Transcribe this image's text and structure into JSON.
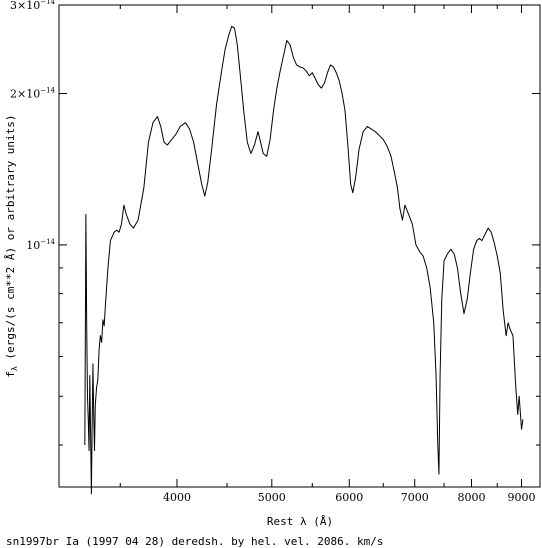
{
  "chart_data": {
    "type": "line",
    "x_scale": "log",
    "y_scale": "log",
    "xlabel": "Rest λ (Å)",
    "ylabel": "f_λ (ergs/(s cm**2 Å) or arbitrary units)",
    "ylabel_parts": {
      "f": "f",
      "sub": "λ",
      "rest": " (ergs/(s cm**2 Å) or arbitrary units)"
    },
    "caption": "sn1997br Ia (1997 04 28) deredsh. by hel. vel.  2086. km/s",
    "xlim": [
      3030,
      9400
    ],
    "ylim": [
      3.3e-15,
      3e-14
    ],
    "x_major_ticks": [
      {
        "value": 4000,
        "label": "4000"
      },
      {
        "value": 5000,
        "label": "5000"
      },
      {
        "value": 6000,
        "label": "6000"
      },
      {
        "value": 7000,
        "label": "7000"
      },
      {
        "value": 8000,
        "label": "8000"
      },
      {
        "value": 9000,
        "label": "9000"
      }
    ],
    "x_minor_ticks": [
      3500,
      4500,
      5500,
      6500,
      7500,
      8500
    ],
    "y_major_ticks": [
      {
        "value": 1e-14,
        "mant": "10",
        "exp": "−14"
      },
      {
        "value": 2e-14,
        "mant": "2×10",
        "exp": "−14"
      },
      {
        "value": 3e-14,
        "mant": "3×10",
        "exp": "−14"
      }
    ],
    "y_minor_ticks": [
      4e-15,
      5e-15,
      6e-15,
      7e-15,
      8e-15,
      9e-15
    ],
    "grid": false,
    "series": [
      {
        "color": "#000000",
        "points": [
          [
            3220,
            4e-15
          ],
          [
            3228,
            1.15e-14
          ],
          [
            3234,
            7e-15
          ],
          [
            3240,
            5e-15
          ],
          [
            3246,
            4.5e-15
          ],
          [
            3252,
            3.9e-15
          ],
          [
            3258,
            5.5e-15
          ],
          [
            3264,
            4.2e-15
          ],
          [
            3270,
            3.2e-15
          ],
          [
            3276,
            4.4e-15
          ],
          [
            3282,
            5.8e-15
          ],
          [
            3288,
            4.6e-15
          ],
          [
            3294,
            3.9e-15
          ],
          [
            3300,
            4.8e-15
          ],
          [
            3310,
            5.2e-15
          ],
          [
            3320,
            5.4e-15
          ],
          [
            3330,
            6.2e-15
          ],
          [
            3340,
            6.6e-15
          ],
          [
            3350,
            6.4e-15
          ],
          [
            3360,
            7.1e-15
          ],
          [
            3370,
            6.9e-15
          ],
          [
            3380,
            7.6e-15
          ],
          [
            3400,
            9e-15
          ],
          [
            3420,
            1.02e-14
          ],
          [
            3450,
            1.06e-14
          ],
          [
            3470,
            1.07e-14
          ],
          [
            3490,
            1.06e-14
          ],
          [
            3510,
            1.1e-14
          ],
          [
            3530,
            1.2e-14
          ],
          [
            3550,
            1.15e-14
          ],
          [
            3580,
            1.1e-14
          ],
          [
            3610,
            1.08e-14
          ],
          [
            3650,
            1.12e-14
          ],
          [
            3700,
            1.3e-14
          ],
          [
            3740,
            1.6e-14
          ],
          [
            3780,
            1.75e-14
          ],
          [
            3820,
            1.8e-14
          ],
          [
            3850,
            1.72e-14
          ],
          [
            3880,
            1.6e-14
          ],
          [
            3910,
            1.58e-14
          ],
          [
            3950,
            1.62e-14
          ],
          [
            3990,
            1.66e-14
          ],
          [
            4030,
            1.72e-14
          ],
          [
            4080,
            1.75e-14
          ],
          [
            4120,
            1.7e-14
          ],
          [
            4160,
            1.6e-14
          ],
          [
            4200,
            1.45e-14
          ],
          [
            4240,
            1.32e-14
          ],
          [
            4270,
            1.25e-14
          ],
          [
            4300,
            1.33e-14
          ],
          [
            4340,
            1.55e-14
          ],
          [
            4390,
            1.9e-14
          ],
          [
            4440,
            2.2e-14
          ],
          [
            4480,
            2.45e-14
          ],
          [
            4520,
            2.62e-14
          ],
          [
            4550,
            2.72e-14
          ],
          [
            4580,
            2.7e-14
          ],
          [
            4610,
            2.5e-14
          ],
          [
            4640,
            2.2e-14
          ],
          [
            4680,
            1.85e-14
          ],
          [
            4720,
            1.6e-14
          ],
          [
            4760,
            1.52e-14
          ],
          [
            4800,
            1.58e-14
          ],
          [
            4840,
            1.68e-14
          ],
          [
            4870,
            1.6e-14
          ],
          [
            4900,
            1.52e-14
          ],
          [
            4940,
            1.5e-14
          ],
          [
            4980,
            1.62e-14
          ],
          [
            5020,
            1.85e-14
          ],
          [
            5060,
            2.05e-14
          ],
          [
            5100,
            2.22e-14
          ],
          [
            5140,
            2.38e-14
          ],
          [
            5180,
            2.55e-14
          ],
          [
            5220,
            2.5e-14
          ],
          [
            5260,
            2.36e-14
          ],
          [
            5300,
            2.28e-14
          ],
          [
            5340,
            2.26e-14
          ],
          [
            5380,
            2.25e-14
          ],
          [
            5420,
            2.22e-14
          ],
          [
            5460,
            2.17e-14
          ],
          [
            5500,
            2.2e-14
          ],
          [
            5540,
            2.14e-14
          ],
          [
            5580,
            2.08e-14
          ],
          [
            5620,
            2.05e-14
          ],
          [
            5660,
            2.1e-14
          ],
          [
            5700,
            2.2e-14
          ],
          [
            5740,
            2.28e-14
          ],
          [
            5780,
            2.26e-14
          ],
          [
            5820,
            2.2e-14
          ],
          [
            5860,
            2.12e-14
          ],
          [
            5900,
            2e-14
          ],
          [
            5940,
            1.85e-14
          ],
          [
            5980,
            1.58e-14
          ],
          [
            6020,
            1.32e-14
          ],
          [
            6050,
            1.27e-14
          ],
          [
            6090,
            1.36e-14
          ],
          [
            6140,
            1.55e-14
          ],
          [
            6200,
            1.68e-14
          ],
          [
            6260,
            1.72e-14
          ],
          [
            6320,
            1.7e-14
          ],
          [
            6380,
            1.68e-14
          ],
          [
            6440,
            1.65e-14
          ],
          [
            6500,
            1.62e-14
          ],
          [
            6560,
            1.57e-14
          ],
          [
            6620,
            1.5e-14
          ],
          [
            6680,
            1.38e-14
          ],
          [
            6720,
            1.3e-14
          ],
          [
            6760,
            1.18e-14
          ],
          [
            6800,
            1.12e-14
          ],
          [
            6840,
            1.2e-14
          ],
          [
            6900,
            1.15e-14
          ],
          [
            6960,
            1.1e-14
          ],
          [
            7020,
            1e-14
          ],
          [
            7080,
            9.7e-15
          ],
          [
            7140,
            9.5e-15
          ],
          [
            7200,
            9e-15
          ],
          [
            7260,
            8.2e-15
          ],
          [
            7320,
            7e-15
          ],
          [
            7360,
            5.5e-15
          ],
          [
            7390,
            4e-15
          ],
          [
            7410,
            3.5e-15
          ],
          [
            7430,
            5.5e-15
          ],
          [
            7460,
            7.8e-15
          ],
          [
            7500,
            9.3e-15
          ],
          [
            7560,
            9.6e-15
          ],
          [
            7620,
            9.8e-15
          ],
          [
            7680,
            9.6e-15
          ],
          [
            7740,
            9e-15
          ],
          [
            7800,
            8e-15
          ],
          [
            7860,
            7.3e-15
          ],
          [
            7920,
            7.8e-15
          ],
          [
            7980,
            8.8e-15
          ],
          [
            8040,
            9.8e-15
          ],
          [
            8100,
            1.02e-14
          ],
          [
            8150,
            1.03e-14
          ],
          [
            8200,
            1.02e-14
          ],
          [
            8260,
            1.05e-14
          ],
          [
            8320,
            1.08e-14
          ],
          [
            8380,
            1.06e-14
          ],
          [
            8440,
            1.01e-14
          ],
          [
            8500,
            9.5e-15
          ],
          [
            8560,
            8.8e-15
          ],
          [
            8620,
            7.4e-15
          ],
          [
            8680,
            6.6e-15
          ],
          [
            8720,
            7e-15
          ],
          [
            8760,
            6.8e-15
          ],
          [
            8820,
            6.6e-15
          ],
          [
            8880,
            5.2e-15
          ],
          [
            8920,
            4.6e-15
          ],
          [
            8950,
            5e-15
          ],
          [
            9000,
            4.3e-15
          ],
          [
            9030,
            4.5e-15
          ]
        ]
      }
    ]
  }
}
